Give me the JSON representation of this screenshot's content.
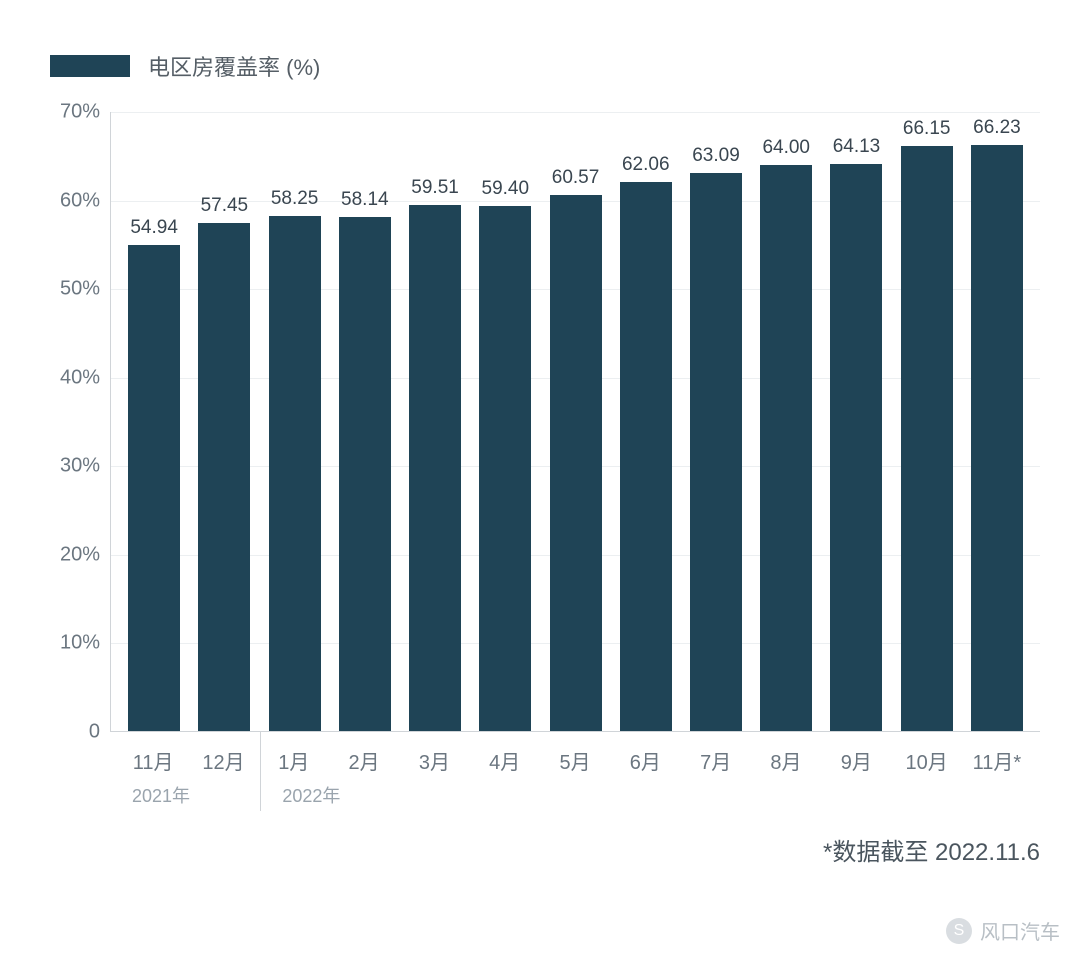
{
  "legend": {
    "label": "电区房覆盖率 (%)",
    "swatch_color": "#1f4456"
  },
  "chart": {
    "type": "bar",
    "bar_color": "#1f4456",
    "background_color": "#ffffff",
    "grid_color": "#eceff1",
    "axis_color": "#d0d4d8",
    "text_color": "#6b7680",
    "value_label_color": "#3a4650",
    "value_label_fontsize": 19,
    "tick_fontsize": 20,
    "bar_width_ratio": 0.74,
    "ylim": [
      0,
      70
    ],
    "ytick_step": 10,
    "ytick_suffix": "%",
    "categories": [
      "11月",
      "12月",
      "1月",
      "2月",
      "3月",
      "4月",
      "5月",
      "6月",
      "7月",
      "8月",
      "9月",
      "10月",
      "11月*"
    ],
    "values": [
      54.94,
      57.45,
      58.25,
      58.14,
      59.51,
      59.4,
      60.57,
      62.06,
      63.09,
      64.0,
      64.13,
      66.15,
      66.23
    ],
    "value_labels": [
      "54.94",
      "57.45",
      "58.25",
      "58.14",
      "59.51",
      "59.40",
      "60.57",
      "62.06",
      "63.09",
      "64.00",
      "64.13",
      "66.15",
      "66.23"
    ],
    "year_groups": [
      {
        "label": "2021年",
        "span": 2
      },
      {
        "label": "2022年",
        "span": 11
      }
    ],
    "year_label_color": "#9aa4ad",
    "year_label_fontsize": 18
  },
  "footnote": "*数据截至 2022.11.6",
  "footnote_color": "#4a555e",
  "footnote_fontsize": 24,
  "watermark": {
    "text": "风口汽车",
    "icon_glyph": "S",
    "color": "#b8bfc5"
  }
}
